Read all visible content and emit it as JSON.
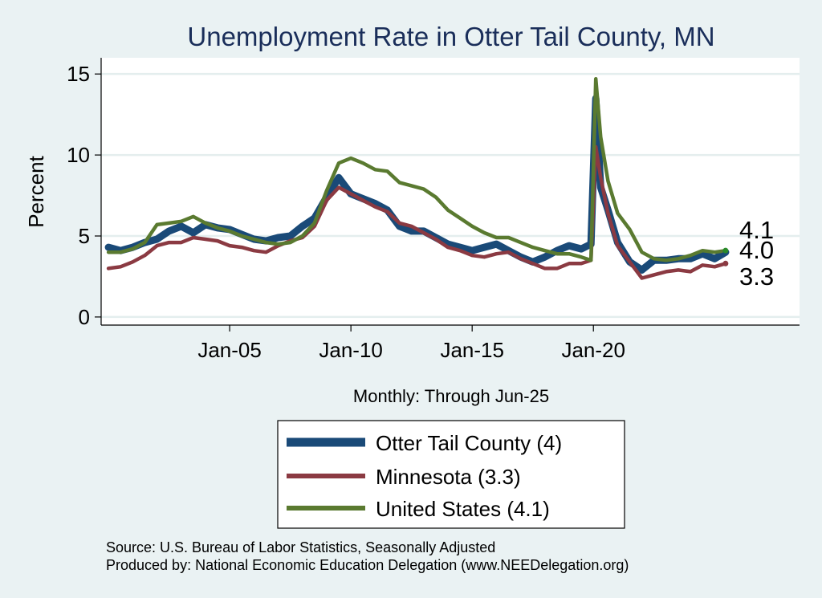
{
  "chart_data": {
    "type": "line",
    "title": "Unemployment Rate in Otter Tail  County, MN",
    "xlabel": "Monthly: Through Jun-25",
    "ylabel": "Percent",
    "ylim": [
      -0.5,
      16
    ],
    "xlim": [
      1999.7,
      2028.5
    ],
    "yticks": [
      0,
      5,
      10,
      15
    ],
    "ytick_labels": [
      "0",
      "5",
      "10",
      "15"
    ],
    "xticks": [
      2005,
      2010,
      2015,
      2020
    ],
    "xtick_labels": [
      "Jan-05",
      "Jan-10",
      "Jan-15",
      "Jan-20"
    ],
    "grid": true,
    "series": [
      {
        "name": "Otter Tail  County (4)",
        "color": "#1a4a78",
        "end_label": "4.0",
        "points": [
          [
            2000.0,
            4.3
          ],
          [
            2000.5,
            4.1
          ],
          [
            2001.0,
            4.3
          ],
          [
            2001.5,
            4.6
          ],
          [
            2002.0,
            4.8
          ],
          [
            2002.5,
            5.3
          ],
          [
            2003.0,
            5.6
          ],
          [
            2003.5,
            5.2
          ],
          [
            2004.0,
            5.7
          ],
          [
            2004.5,
            5.5
          ],
          [
            2005.0,
            5.4
          ],
          [
            2005.5,
            5.1
          ],
          [
            2006.0,
            4.8
          ],
          [
            2006.5,
            4.7
          ],
          [
            2007.0,
            4.9
          ],
          [
            2007.5,
            5.0
          ],
          [
            2008.0,
            5.6
          ],
          [
            2008.5,
            6.1
          ],
          [
            2009.0,
            7.4
          ],
          [
            2009.5,
            8.6
          ],
          [
            2010.0,
            7.6
          ],
          [
            2010.5,
            7.3
          ],
          [
            2011.0,
            7.0
          ],
          [
            2011.5,
            6.6
          ],
          [
            2012.0,
            5.6
          ],
          [
            2012.5,
            5.3
          ],
          [
            2013.0,
            5.3
          ],
          [
            2013.5,
            4.9
          ],
          [
            2014.0,
            4.5
          ],
          [
            2014.5,
            4.3
          ],
          [
            2015.0,
            4.1
          ],
          [
            2015.5,
            4.3
          ],
          [
            2016.0,
            4.5
          ],
          [
            2016.5,
            4.1
          ],
          [
            2017.0,
            3.7
          ],
          [
            2017.5,
            3.4
          ],
          [
            2018.0,
            3.7
          ],
          [
            2018.5,
            4.1
          ],
          [
            2019.0,
            4.4
          ],
          [
            2019.5,
            4.2
          ],
          [
            2019.9,
            4.5
          ],
          [
            2020.1,
            13.5
          ],
          [
            2020.3,
            8.0
          ],
          [
            2020.6,
            6.6
          ],
          [
            2021.0,
            4.6
          ],
          [
            2021.5,
            3.4
          ],
          [
            2022.0,
            2.9
          ],
          [
            2022.5,
            3.5
          ],
          [
            2023.0,
            3.5
          ],
          [
            2023.5,
            3.6
          ],
          [
            2024.0,
            3.6
          ],
          [
            2024.5,
            3.9
          ],
          [
            2025.0,
            3.6
          ],
          [
            2025.45,
            4.0
          ]
        ]
      },
      {
        "name": "Minnesota (3.3)",
        "color": "#8b3a42",
        "end_label": "3.3",
        "points": [
          [
            2000.0,
            3.0
          ],
          [
            2000.5,
            3.1
          ],
          [
            2001.0,
            3.4
          ],
          [
            2001.5,
            3.8
          ],
          [
            2002.0,
            4.4
          ],
          [
            2002.5,
            4.6
          ],
          [
            2003.0,
            4.6
          ],
          [
            2003.5,
            4.9
          ],
          [
            2004.0,
            4.8
          ],
          [
            2004.5,
            4.7
          ],
          [
            2005.0,
            4.4
          ],
          [
            2005.5,
            4.3
          ],
          [
            2006.0,
            4.1
          ],
          [
            2006.5,
            4.0
          ],
          [
            2007.0,
            4.4
          ],
          [
            2007.5,
            4.7
          ],
          [
            2008.0,
            4.9
          ],
          [
            2008.5,
            5.6
          ],
          [
            2009.0,
            7.2
          ],
          [
            2009.5,
            8.0
          ],
          [
            2010.0,
            7.6
          ],
          [
            2010.5,
            7.2
          ],
          [
            2011.0,
            6.8
          ],
          [
            2011.5,
            6.5
          ],
          [
            2012.0,
            5.8
          ],
          [
            2012.5,
            5.6
          ],
          [
            2013.0,
            5.2
          ],
          [
            2013.5,
            4.8
          ],
          [
            2014.0,
            4.3
          ],
          [
            2014.5,
            4.1
          ],
          [
            2015.0,
            3.8
          ],
          [
            2015.5,
            3.7
          ],
          [
            2016.0,
            3.9
          ],
          [
            2016.5,
            4.0
          ],
          [
            2017.0,
            3.6
          ],
          [
            2017.5,
            3.3
          ],
          [
            2018.0,
            3.0
          ],
          [
            2018.5,
            3.0
          ],
          [
            2019.0,
            3.3
          ],
          [
            2019.5,
            3.3
          ],
          [
            2019.9,
            3.5
          ],
          [
            2020.1,
            10.5
          ],
          [
            2020.3,
            8.6
          ],
          [
            2020.6,
            6.4
          ],
          [
            2021.0,
            4.4
          ],
          [
            2021.5,
            3.4
          ],
          [
            2022.0,
            2.4
          ],
          [
            2022.5,
            2.6
          ],
          [
            2023.0,
            2.8
          ],
          [
            2023.5,
            2.9
          ],
          [
            2024.0,
            2.8
          ],
          [
            2024.5,
            3.2
          ],
          [
            2025.0,
            3.1
          ],
          [
            2025.45,
            3.3
          ]
        ]
      },
      {
        "name": "United States (4.1)",
        "color": "#5a7a30",
        "end_label": "4.1",
        "points": [
          [
            2000.0,
            4.0
          ],
          [
            2000.5,
            4.0
          ],
          [
            2001.0,
            4.2
          ],
          [
            2001.5,
            4.6
          ],
          [
            2002.0,
            5.7
          ],
          [
            2002.5,
            5.8
          ],
          [
            2003.0,
            5.9
          ],
          [
            2003.5,
            6.2
          ],
          [
            2004.0,
            5.8
          ],
          [
            2004.5,
            5.5
          ],
          [
            2005.0,
            5.3
          ],
          [
            2005.5,
            5.0
          ],
          [
            2006.0,
            4.8
          ],
          [
            2006.5,
            4.6
          ],
          [
            2007.0,
            4.5
          ],
          [
            2007.5,
            4.6
          ],
          [
            2008.0,
            5.0
          ],
          [
            2008.5,
            5.8
          ],
          [
            2009.0,
            7.8
          ],
          [
            2009.5,
            9.5
          ],
          [
            2010.0,
            9.8
          ],
          [
            2010.5,
            9.5
          ],
          [
            2011.0,
            9.1
          ],
          [
            2011.5,
            9.0
          ],
          [
            2012.0,
            8.3
          ],
          [
            2012.5,
            8.1
          ],
          [
            2013.0,
            7.9
          ],
          [
            2013.5,
            7.4
          ],
          [
            2014.0,
            6.6
          ],
          [
            2014.5,
            6.1
          ],
          [
            2015.0,
            5.6
          ],
          [
            2015.5,
            5.2
          ],
          [
            2016.0,
            4.9
          ],
          [
            2016.5,
            4.9
          ],
          [
            2017.0,
            4.6
          ],
          [
            2017.5,
            4.3
          ],
          [
            2018.0,
            4.1
          ],
          [
            2018.5,
            3.9
          ],
          [
            2019.0,
            3.9
          ],
          [
            2019.5,
            3.7
          ],
          [
            2019.9,
            3.5
          ],
          [
            2020.1,
            14.7
          ],
          [
            2020.3,
            11.1
          ],
          [
            2020.6,
            8.4
          ],
          [
            2021.0,
            6.4
          ],
          [
            2021.5,
            5.4
          ],
          [
            2022.0,
            4.0
          ],
          [
            2022.5,
            3.6
          ],
          [
            2023.0,
            3.5
          ],
          [
            2023.5,
            3.6
          ],
          [
            2024.0,
            3.8
          ],
          [
            2024.5,
            4.1
          ],
          [
            2025.0,
            4.0
          ],
          [
            2025.45,
            4.1
          ]
        ]
      }
    ]
  },
  "source_line": "Source: U.S. Bureau of Labor Statistics, Seasonally Adjusted",
  "producer_line": "Produced by: National Economic Education Delegation (www.NEEDelegation.org)"
}
